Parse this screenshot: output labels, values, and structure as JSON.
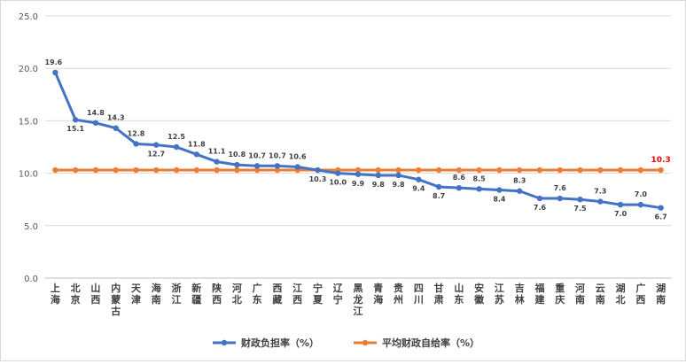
{
  "chart_data": {
    "type": "line",
    "title": "",
    "xlabel": "",
    "ylabel": "",
    "ylim": [
      0,
      25
    ],
    "yticks": [
      "0.0",
      "5.0",
      "10.0",
      "15.0",
      "20.0",
      "25.0"
    ],
    "grid": "horizontal",
    "legend_position": "bottom",
    "categories": [
      "上海",
      "北京",
      "山西",
      "内蒙古",
      "天津",
      "海南",
      "浙江",
      "新疆",
      "陕西",
      "河北",
      "广东",
      "西藏",
      "江西",
      "宁夏",
      "辽宁",
      "黑龙江",
      "青海",
      "贵州",
      "四川",
      "甘肃",
      "山东",
      "安徽",
      "江苏",
      "吉林",
      "福建",
      "重庆",
      "河南",
      "云南",
      "湖北",
      "广西",
      "湖南"
    ],
    "series": [
      {
        "name": "财政负担率（%）",
        "color": "#4472C4",
        "values": [
          19.6,
          15.1,
          14.8,
          14.3,
          12.8,
          12.7,
          12.5,
          11.8,
          11.1,
          10.8,
          10.7,
          10.7,
          10.6,
          10.3,
          10.0,
          9.9,
          9.8,
          9.8,
          9.4,
          8.7,
          8.6,
          8.5,
          8.4,
          8.3,
          7.6,
          7.6,
          7.5,
          7.3,
          7.0,
          7.0,
          6.7
        ],
        "labels": [
          "19.6",
          "15.1",
          "14.8",
          "14.3",
          "12.8",
          "12.7",
          "12.5",
          "11.8",
          "11.1",
          "10.8",
          "10.7",
          "10.7",
          "10.6",
          "10.3",
          "10.0",
          "9.9",
          "9.8",
          "9.8",
          "9.4",
          "8.7",
          "8.6",
          "8.5",
          "8.4",
          "8.3",
          "7.6",
          "7.6",
          "7.5",
          "7.3",
          "7.0",
          "7.0",
          "6.7"
        ]
      },
      {
        "name": "平均财政自给率（%）",
        "color": "#ED7D31",
        "values": [
          10.3,
          10.3,
          10.3,
          10.3,
          10.3,
          10.3,
          10.3,
          10.3,
          10.3,
          10.3,
          10.3,
          10.3,
          10.3,
          10.3,
          10.3,
          10.3,
          10.3,
          10.3,
          10.3,
          10.3,
          10.3,
          10.3,
          10.3,
          10.3,
          10.3,
          10.3,
          10.3,
          10.3,
          10.3,
          10.3,
          10.3
        ],
        "end_label": "10.3",
        "end_label_color": "#FF0000"
      }
    ]
  }
}
